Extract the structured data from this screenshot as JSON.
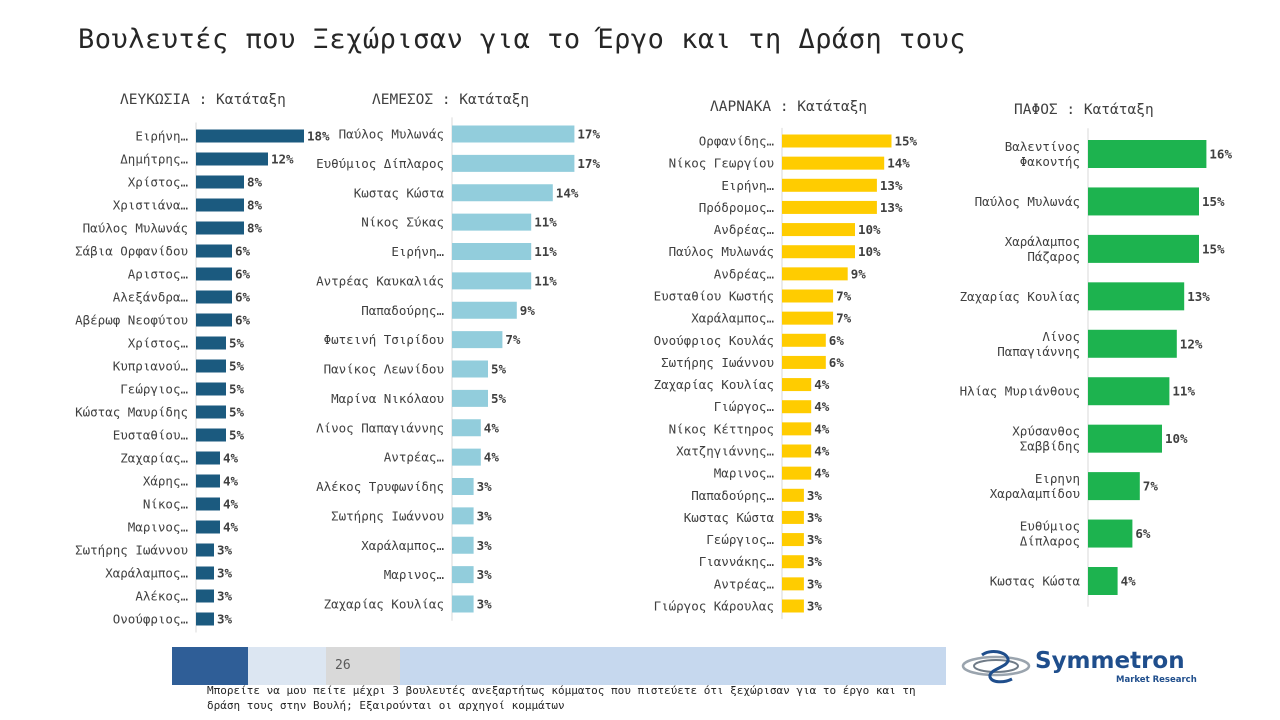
{
  "page": {
    "title": "Βουλευτές που Ξεχώρισαν για το Έργο και τη Δράση τους",
    "page_number": "26",
    "question": "Μπορείτε να μου πείτε μέχρι 3 βουλευτές ανεξαρτήτως κόμματος που πιστεύετε ότι ξεχώρισαν για το έργο και τη δράση τους στην Βουλή; Εξαιρούνται οι αρχηγοί κομμάτων",
    "logo": {
      "name": "Symmetron",
      "tagline": "Market Research"
    },
    "footer_colors": [
      "#2f5e97",
      "#dce6f2",
      "#d9d9d9",
      "#c6d8ee"
    ]
  },
  "chart_data": [
    {
      "type": "bar",
      "orientation": "horizontal",
      "title": "ΛΕΥΚΩΣΙΑ : Κατάταξη",
      "color": "#1b5a7f",
      "categories": [
        "Ειρήνη…",
        "Δημήτρης…",
        "Χρίστος…",
        "Χριστιάνα…",
        "Παύλος Μυλωνάς",
        "Σάβια Ορφανίδου",
        "Αριστος…",
        "Αλεξάνδρα…",
        "Αβέρωφ Νεοφύτου",
        "Χρίστος…",
        "Κυπριανού…",
        "Γεώργιος…",
        "Κώστας Μαυρίδης",
        "Ευσταθίου…",
        "Ζαχαρίας…",
        "Χάρης…",
        "Νίκος…",
        "Μαρινος…",
        "Σωτήρης Ιωάννου",
        "Χαράλαμπος…",
        "Αλέκος…",
        "Ονούφριος…"
      ],
      "values": [
        18,
        12,
        8,
        8,
        8,
        6,
        6,
        6,
        6,
        5,
        5,
        5,
        5,
        5,
        4,
        4,
        4,
        4,
        3,
        3,
        3,
        3
      ],
      "labels": [
        "18%",
        "12%",
        "8%",
        "8%",
        "8%",
        "6%",
        "6%",
        "6%",
        "6%",
        "5%",
        "5%",
        "5%",
        "5%",
        "5%",
        "4%",
        "4%",
        "4%",
        "4%",
        "3%",
        "3%",
        "3%",
        "3%"
      ]
    },
    {
      "type": "bar",
      "orientation": "horizontal",
      "title": "ΛΕΜΕΣΟΣ : Κατάταξη",
      "color": "#92cddc",
      "categories": [
        "Παύλος Μυλωνάς",
        "Ευθύμιος Δίπλαρος",
        "Κωστας Κώστα",
        "Νίκος Σύκας",
        "Ειρήνη…",
        "Αντρέας Καυκαλιάς",
        "Παπαδούρης…",
        "Φωτεινή Τσιρίδου",
        "Πανίκος Λεωνίδου",
        "Μαρίνα Νικόλαου",
        "Λίνος Παπαγιάννης",
        "Αντρέας…",
        "Αλέκος Τρυφωνίδης",
        "Σωτήρης Ιωάννου",
        "Χαράλαμπος…",
        "Μαρινος…",
        "Ζαχαρίας Κουλίας"
      ],
      "values": [
        17,
        17,
        14,
        11,
        11,
        11,
        9,
        7,
        5,
        5,
        4,
        4,
        3,
        3,
        3,
        3,
        3
      ],
      "labels": [
        "17%",
        "17%",
        "14%",
        "11%",
        "11%",
        "11%",
        "9%",
        "7%",
        "5%",
        "5%",
        "4%",
        "4%",
        "3%",
        "3%",
        "3%",
        "3%",
        "3%"
      ]
    },
    {
      "type": "bar",
      "orientation": "horizontal",
      "title": "ΛΑΡΝΑΚΑ : Κατάταξη",
      "color": "#ffcc00",
      "categories": [
        "Ορφανίδης…",
        "Νίκος Γεωργίου",
        "Ειρήνη…",
        "Πρόδρομος…",
        "Ανδρέας…",
        "Παύλος Μυλωνάς",
        "Ανδρέας…",
        "Ευσταθίου Κωστής",
        "Χαράλαμπος…",
        "Ονούφριος Κουλάς",
        "Σωτήρης Ιωάννου",
        "Ζαχαρίας Κουλίας",
        "Γιώργος…",
        "Νίκος Κέττηρος",
        "Χατζηγιάννης…",
        "Μαρινος…",
        "Παπαδούρης…",
        "Κωστας Κώστα",
        "Γεώργιος…",
        "Γιαννάκης…",
        "Αντρέας…",
        "Γιώργος Κάρουλας"
      ],
      "values": [
        15,
        14,
        13,
        13,
        10,
        10,
        9,
        7,
        7,
        6,
        6,
        4,
        4,
        4,
        4,
        4,
        3,
        3,
        3,
        3,
        3,
        3
      ],
      "labels": [
        "15%",
        "14%",
        "13%",
        "13%",
        "10%",
        "10%",
        "9%",
        "7%",
        "7%",
        "6%",
        "6%",
        "4%",
        "4%",
        "4%",
        "4%",
        "4%",
        "3%",
        "3%",
        "3%",
        "3%",
        "3%",
        "3%"
      ]
    },
    {
      "type": "bar",
      "orientation": "horizontal",
      "title": "ΠΑΦΟΣ : Κατάταξη",
      "color": "#1db34f",
      "categories": [
        "Βαλεντίνος\nΦακοντής",
        "Παύλος Μυλωνάς",
        "Χαράλαμπος\nΠάζαρος",
        "Ζαχαρίας Κουλίας",
        "Λίνος\nΠαπαγιάννης",
        "Ηλίας Μυριάνθους",
        "Χρύσανθος\nΣαββίδης",
        "Ειρηνη\nΧαραλαμπίδου",
        "Ευθύμιος\nΔίπλαρος",
        "Κωστας Κώστα"
      ],
      "values": [
        16,
        15,
        15,
        13,
        12,
        11,
        10,
        7,
        6,
        4
      ],
      "labels": [
        "16%",
        "15%",
        "15%",
        "13%",
        "12%",
        "11%",
        "10%",
        "7%",
        "6%",
        "4%"
      ]
    }
  ]
}
